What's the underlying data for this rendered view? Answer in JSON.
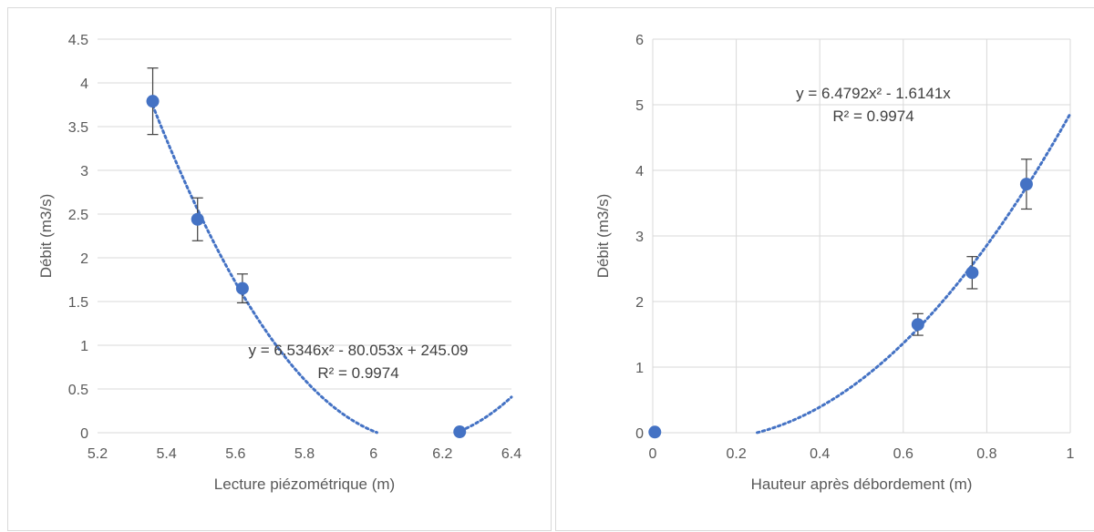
{
  "chart_data": [
    {
      "type": "scatter",
      "xlabel": "Lecture piézométrique (m)",
      "ylabel": "Débit (m3/s)",
      "xlim": [
        5.2,
        6.4
      ],
      "ylim": [
        0,
        4.5
      ],
      "xticks": [
        "5.2",
        "5.4",
        "5.6",
        "5.8",
        "6",
        "6.2",
        "6.4"
      ],
      "yticks": [
        "0",
        "0.5",
        "1",
        "1.5",
        "2",
        "2.5",
        "3",
        "3.5",
        "4",
        "4.5"
      ],
      "grid": "horizontal",
      "points": [
        {
          "x": 5.36,
          "y": 3.79,
          "err": 0.38
        },
        {
          "x": 5.49,
          "y": 2.44,
          "err": 0.245
        },
        {
          "x": 5.62,
          "y": 1.65,
          "err": 0.165
        },
        {
          "x": 6.25,
          "y": 0.01,
          "err": 0
        }
      ],
      "trendline": {
        "type": "polynomial",
        "coeffs": [
          6.5346,
          -80.053,
          245.09
        ],
        "x_range": [
          5.36,
          6.4
        ]
      },
      "equation": "y = 6.5346x² - 80.053x + 245.09",
      "r_squared": "R² = 0.9974",
      "colors": {
        "marker": "#4472c4",
        "trend": "#4472c4",
        "error": "#404040",
        "grid": "#d9d9d9"
      }
    },
    {
      "type": "scatter",
      "xlabel": "Hauteur après débordement (m)",
      "ylabel": "Débit (m3/s)",
      "xlim": [
        0,
        1
      ],
      "ylim": [
        0,
        6
      ],
      "xticks": [
        "0",
        "0.2",
        "0.4",
        "0.6",
        "0.8",
        "1"
      ],
      "yticks": [
        "0",
        "1",
        "2",
        "3",
        "4",
        "5",
        "6"
      ],
      "grid": "both",
      "points": [
        {
          "x": 0.005,
          "y": 0.01,
          "err": 0
        },
        {
          "x": 0.635,
          "y": 1.65,
          "err": 0.165
        },
        {
          "x": 0.765,
          "y": 2.44,
          "err": 0.245
        },
        {
          "x": 0.895,
          "y": 3.79,
          "err": 0.38
        }
      ],
      "trendline": {
        "type": "polynomial",
        "coeffs": [
          6.4792,
          -1.6141,
          0
        ],
        "x_range": [
          0,
          1
        ]
      },
      "equation": "y = 6.4792x² - 1.6141x",
      "r_squared": "R² = 0.9974",
      "colors": {
        "marker": "#4472c4",
        "trend": "#4472c4",
        "error": "#404040",
        "grid": "#d9d9d9"
      }
    }
  ]
}
